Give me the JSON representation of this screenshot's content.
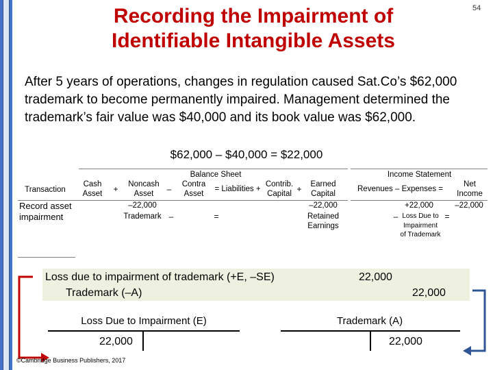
{
  "page_number": "54",
  "title_line1": "Recording the Impairment of",
  "title_line2": "Identifiable Intangible Assets",
  "intro": "After 5 years of operations, changes in regulation caused Sat.Co’s $62,000 trademark to become permanently impaired. Management determined the trademark’s fair value was $40,000 and its book value was $62,000.",
  "equation": "$62,000 – $40,000 = $22,000",
  "table": {
    "balance_sheet_header": "Balance Sheet",
    "income_statement_header": "Income Statement",
    "transaction_header": "Transaction",
    "cash_asset": "Cash Asset",
    "plus1": "+",
    "noncash_asset": "Noncash Asset",
    "minus1": "–",
    "contra_asset": "Contra Asset",
    "equals_liabilities": "= Liabilities +",
    "contrib_capital": "Contrib. Capital",
    "plus2": "+",
    "earned_capital": "Earned Capital",
    "revenues_expenses": "Revenues – Expenses =",
    "net_income": "Net Income",
    "row_label": "Record asset impairment",
    "noncash_value": "–22,000",
    "noncash_account": "Trademark",
    "minus2": "–",
    "equals2": "=",
    "earned_value": "–22,000",
    "earned_account": "Retained Earnings",
    "expense_value": "+22,000",
    "minus3": "–",
    "expense_account": "Loss Due to Impairment of Trademark",
    "equals3": "=",
    "net_income_value": "–22,000"
  },
  "journal": {
    "line1_account": "Loss due to impairment of trademark (+E, –SE)",
    "line1_amount": "22,000",
    "line2_account": "Trademark (–A)",
    "line2_amount": "22,000"
  },
  "t_accounts": [
    {
      "name": "Loss Due to Impairment (E)",
      "debit": "22,000"
    },
    {
      "name": "Trademark (A)",
      "credit": "22,000"
    }
  ],
  "footer": "©Cambridge Business Publishers, 2017",
  "colors": {
    "title": "#c00000",
    "arrow_left": "#c00000",
    "arrow_right": "#2f5597",
    "sidebar": "#4472c4",
    "row_bg": "#eef0e0"
  }
}
